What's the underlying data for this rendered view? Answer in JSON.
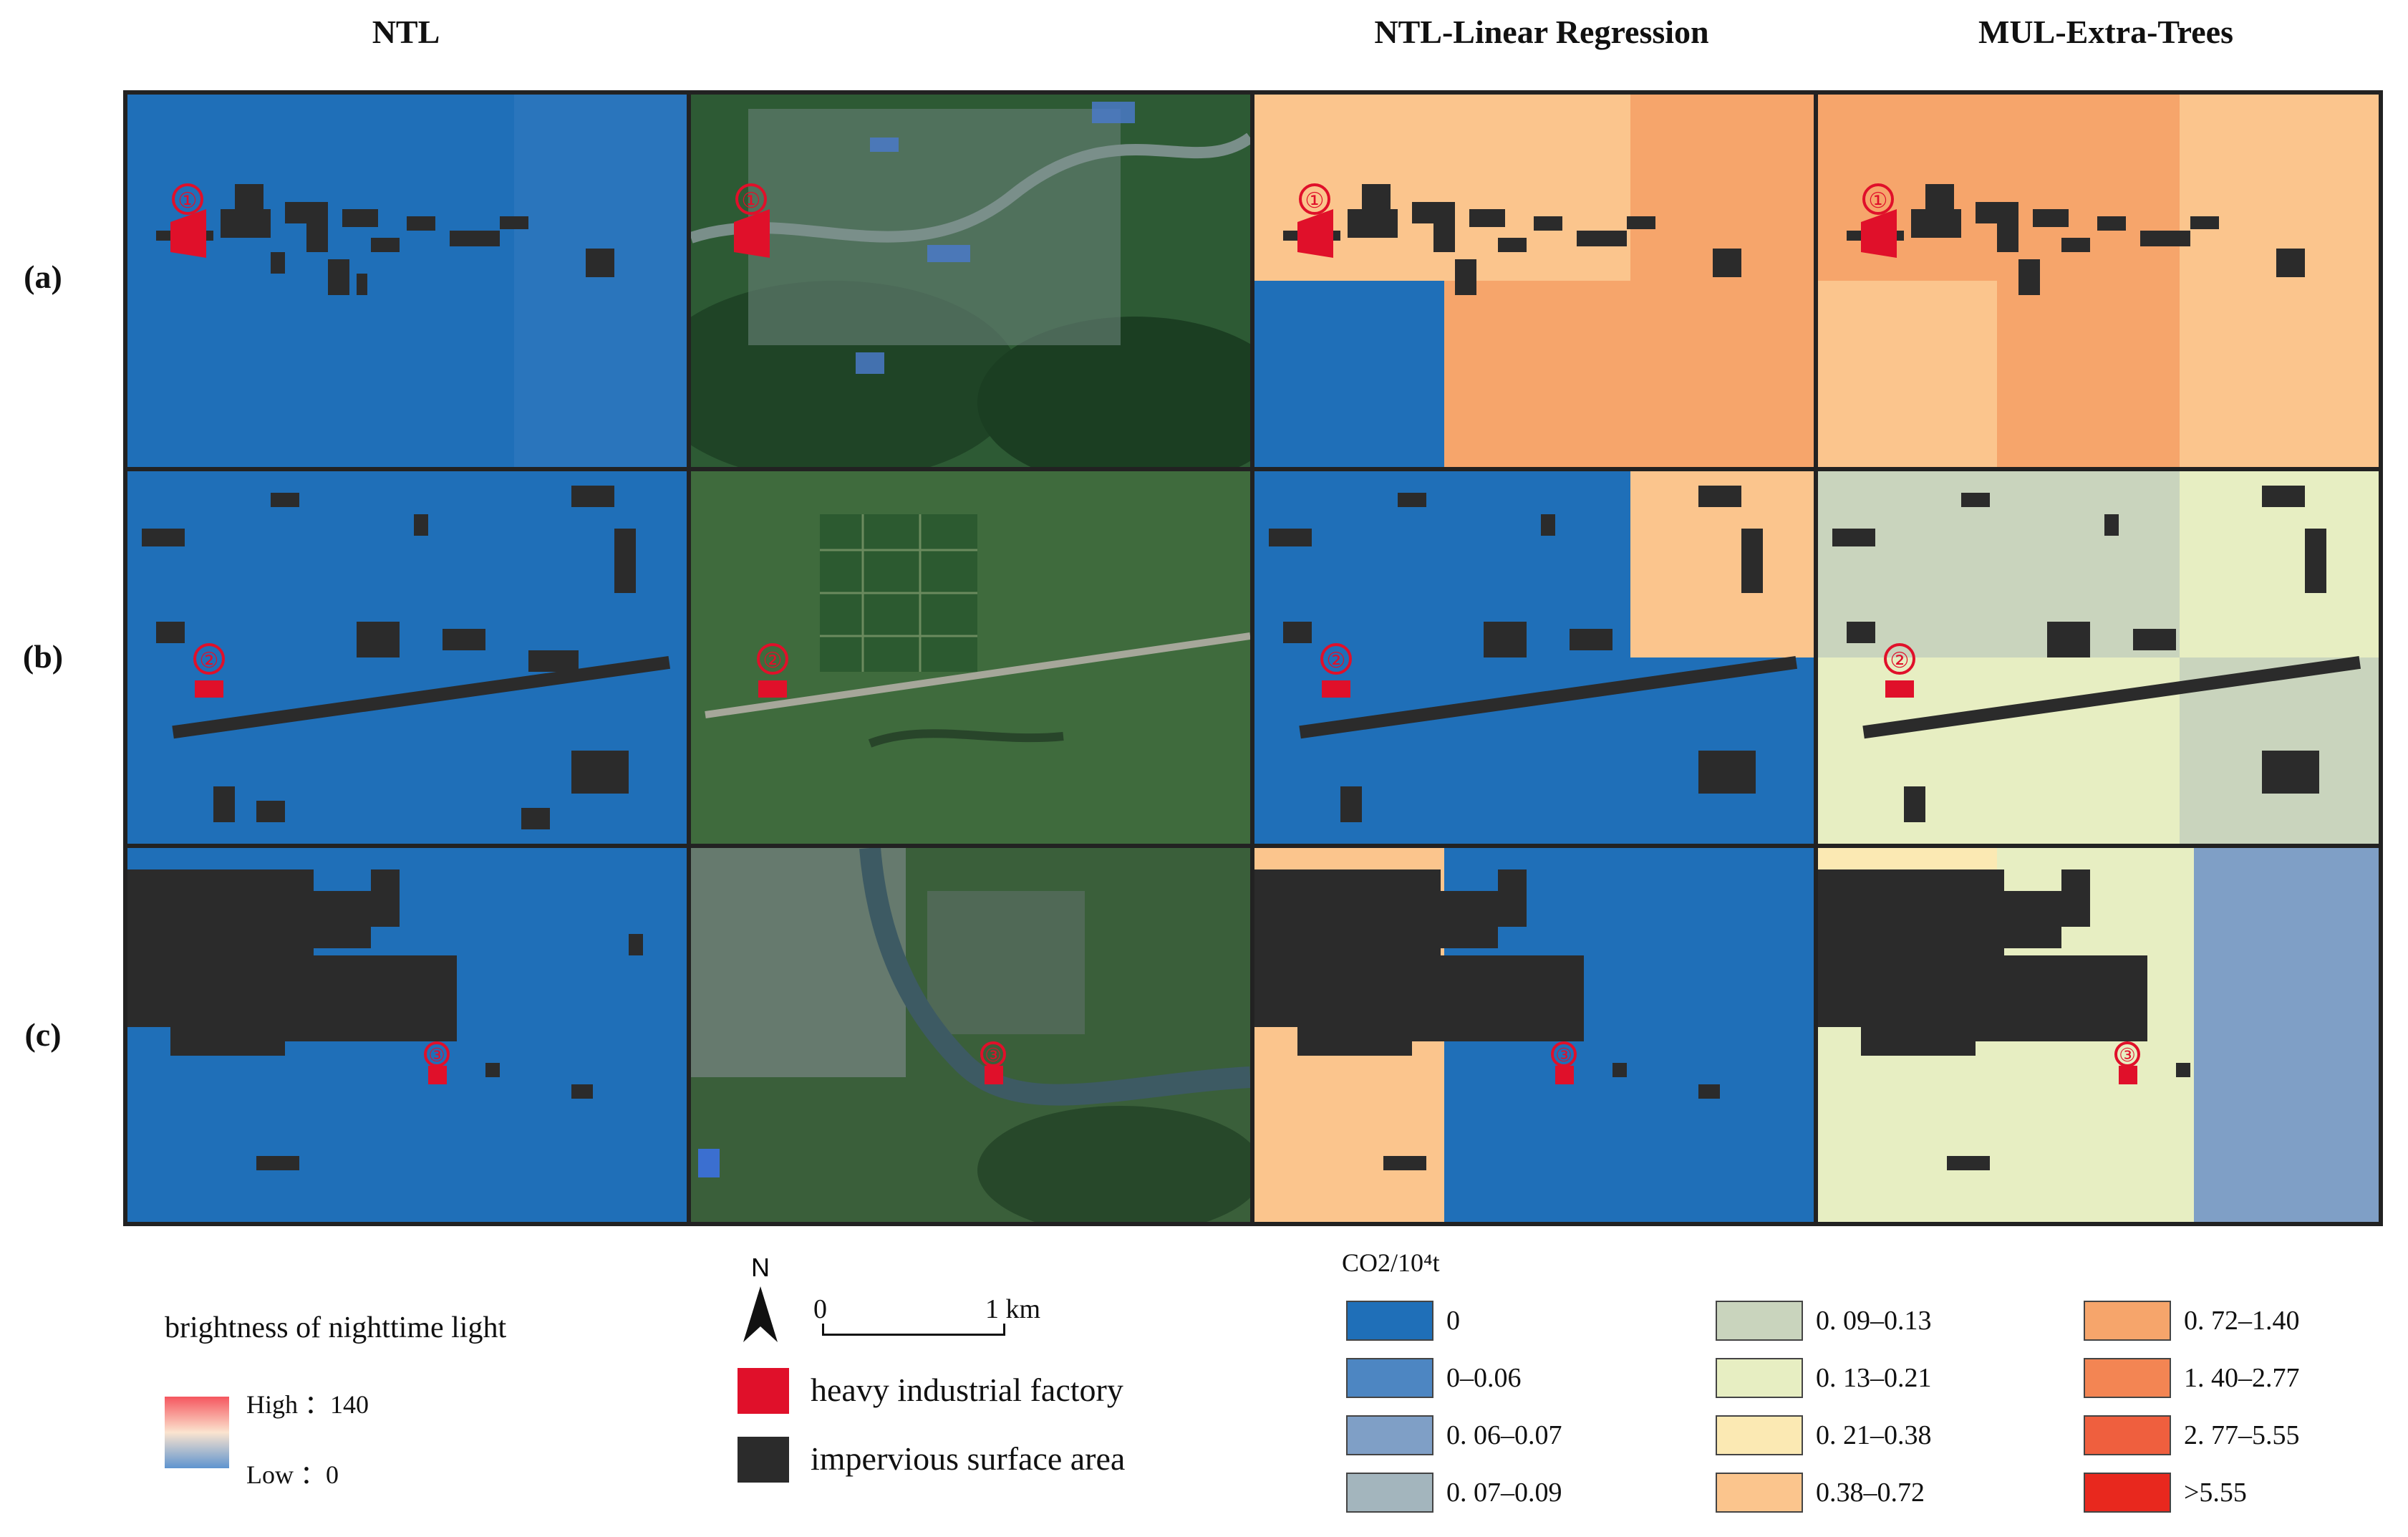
{
  "columns": [
    "NTL",
    "",
    "NTL-Linear Regression",
    "MUL-Extra-Trees"
  ],
  "rows": [
    "(a)",
    "(b)",
    "(c)"
  ],
  "markers": [
    "①",
    "②",
    "③"
  ],
  "legend": {
    "ntl_title": "brightness of nighttime light",
    "high": "High ：140",
    "low": "Low ：0",
    "north": "N",
    "scale_start": "0",
    "scale_end": "1 km",
    "factory": "heavy industrial factory",
    "impervious": "impervious surface area",
    "co2_title": "CO2/10⁴t",
    "classes": [
      {
        "label": "0",
        "color": "#1f6fb8"
      },
      {
        "label": "0–0.06",
        "color": "#4d86c2"
      },
      {
        "label": "0. 06–0.07",
        "color": "#7f9fc6"
      },
      {
        "label": "0. 07–0.09",
        "color": "#a3b5bd"
      },
      {
        "label": "0. 09–0.13",
        "color": "#c9d4bd"
      },
      {
        "label": "0. 13–0.21",
        "color": "#e7eec2"
      },
      {
        "label": "0. 21–0.38",
        "color": "#fbe9b3"
      },
      {
        "label": "0.38–0.72",
        "color": "#fbc58d"
      },
      {
        "label": "0. 72–1.40",
        "color": "#f6a56b"
      },
      {
        "label": "1. 40–2.77",
        "color": "#f38553"
      },
      {
        "label": "2. 77–5.55",
        "color": "#ef5f3e"
      },
      {
        "label": ">5.55",
        "color": "#e8281e"
      }
    ]
  },
  "colors": {
    "ntl_blue": "#1f6fb8",
    "impervious": "#2b2b2b",
    "factory": "#e0102a",
    "satellite": "#2d5a34"
  }
}
